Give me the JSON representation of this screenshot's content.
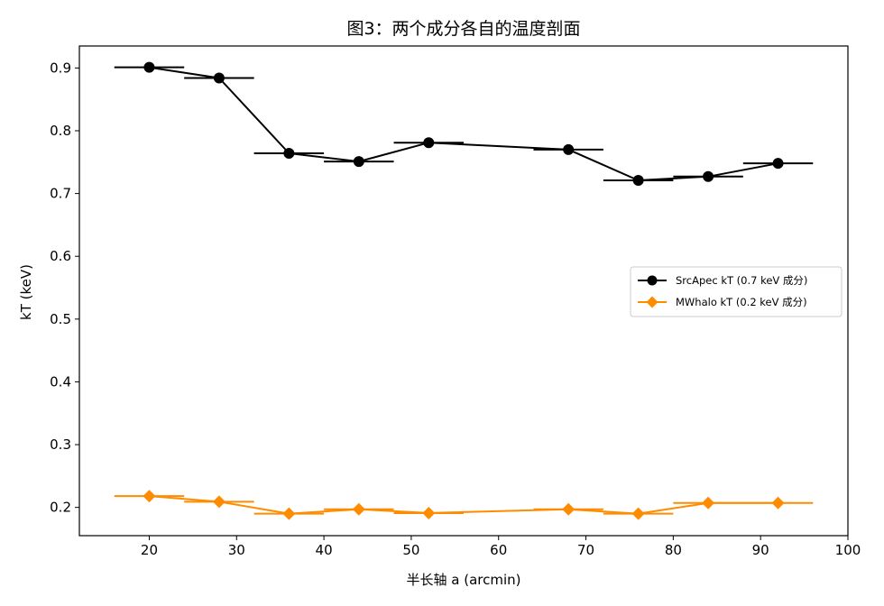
{
  "chart_data": {
    "type": "line",
    "title": "图3：两个成分各自的温度剖面",
    "xlabel": "半长轴 a (arcmin)",
    "ylabel": "kT (keV)",
    "xlim": [
      12,
      100
    ],
    "ylim": [
      0.155,
      0.935
    ],
    "xticks": [
      20,
      30,
      40,
      50,
      60,
      70,
      80,
      90,
      100
    ],
    "yticks": [
      0.2,
      0.3,
      0.4,
      0.5,
      0.6,
      0.7,
      0.8,
      0.9
    ],
    "grid": false,
    "legend_position": "center-right",
    "series": [
      {
        "name": "SrcApec kT (0.7 keV 成分)",
        "color": "#000000",
        "marker": "circle",
        "points": [
          {
            "x": 20,
            "y": 0.901,
            "xerr": 4
          },
          {
            "x": 28,
            "y": 0.884,
            "xerr": 4
          },
          {
            "x": 36,
            "y": 0.764,
            "xerr": 4
          },
          {
            "x": 44,
            "y": 0.751,
            "xerr": 4
          },
          {
            "x": 52,
            "y": 0.781,
            "xerr": 4
          },
          {
            "x": 68,
            "y": 0.77,
            "xerr": 4
          },
          {
            "x": 76,
            "y": 0.721,
            "xerr": 4
          },
          {
            "x": 84,
            "y": 0.727,
            "xerr": 4
          },
          {
            "x": 92,
            "y": 0.748,
            "xerr": 4
          }
        ]
      },
      {
        "name": "MWhalo kT (0.2 keV 成分)",
        "color": "#ff8c00",
        "marker": "diamond",
        "points": [
          {
            "x": 20,
            "y": 0.218,
            "xerr": 4
          },
          {
            "x": 28,
            "y": 0.209,
            "xerr": 4
          },
          {
            "x": 36,
            "y": 0.19,
            "xerr": 4
          },
          {
            "x": 44,
            "y": 0.197,
            "xerr": 4
          },
          {
            "x": 52,
            "y": 0.191,
            "xerr": 4
          },
          {
            "x": 68,
            "y": 0.197,
            "xerr": 4
          },
          {
            "x": 76,
            "y": 0.19,
            "xerr": 4
          },
          {
            "x": 84,
            "y": 0.207,
            "xerr": 4
          },
          {
            "x": 92,
            "y": 0.207,
            "xerr": 4
          }
        ]
      }
    ]
  }
}
